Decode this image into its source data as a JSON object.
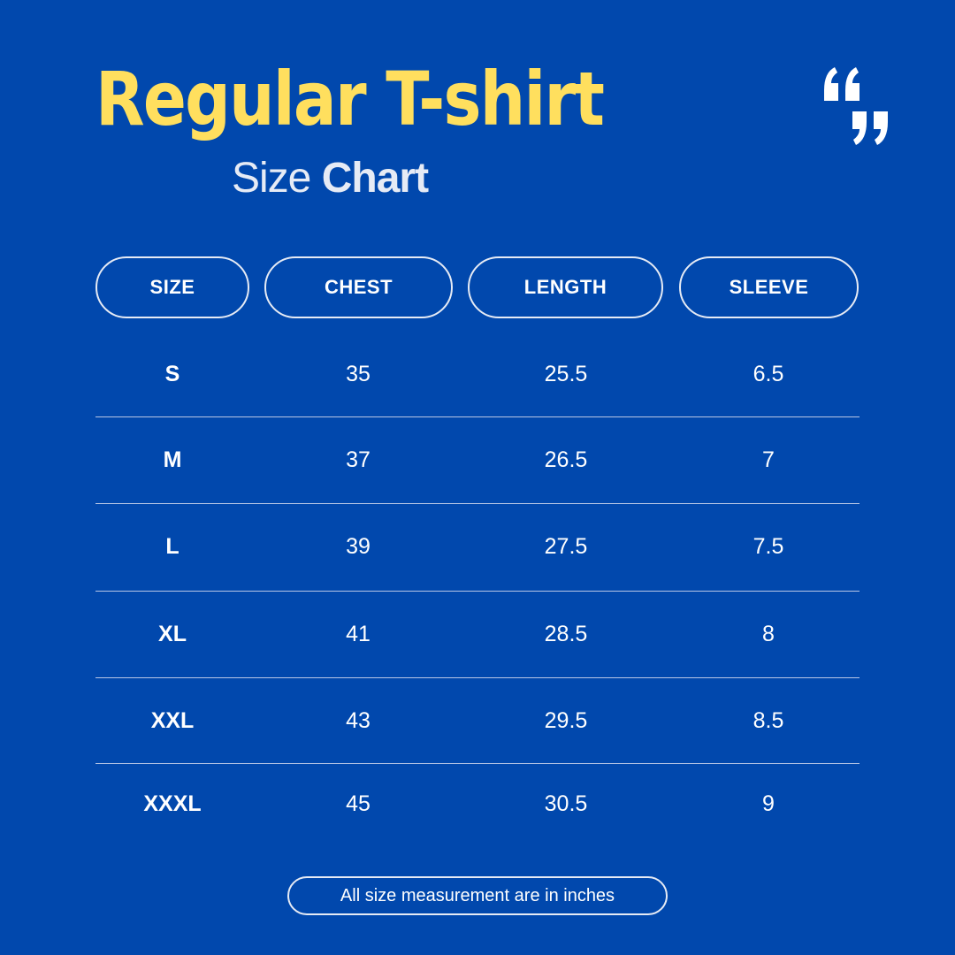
{
  "title": "Regular T-shirt",
  "subtitle": {
    "light": "Size",
    "bold": "Chart"
  },
  "quote_icon": "“”",
  "colors": {
    "background": "#0148ad",
    "title": "#ffdf5e",
    "text": "#ffffff"
  },
  "table": {
    "headers": [
      "SIZE",
      "CHEST",
      "LENGTH",
      "SLEEVE"
    ],
    "rows": [
      [
        "S",
        "35",
        "25.5",
        "6.5"
      ],
      [
        "M",
        "37",
        "26.5",
        "7"
      ],
      [
        "L",
        "39",
        "27.5",
        "7.5"
      ],
      [
        "XL",
        "41",
        "28.5",
        "8"
      ],
      [
        "XXL",
        "43",
        "29.5",
        "8.5"
      ],
      [
        "XXXL",
        "45",
        "30.5",
        "9"
      ]
    ]
  },
  "footer": "All size measurement are in inches"
}
